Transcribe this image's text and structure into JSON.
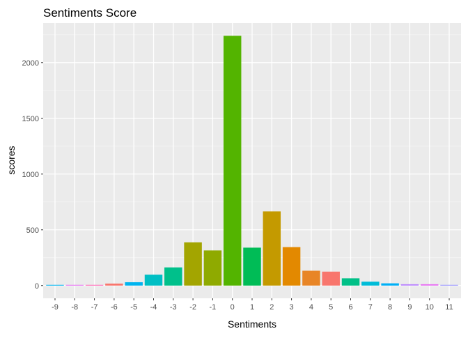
{
  "chart_data": {
    "type": "bar",
    "title": "Sentiments Score",
    "xlabel": "Sentiments",
    "ylabel": "scores",
    "categories": [
      "-9",
      "-8",
      "-7",
      "-6",
      "-5",
      "-4",
      "-3",
      "-2",
      "-1",
      "0",
      "1",
      "2",
      "3",
      "4",
      "5",
      "6",
      "7",
      "8",
      "9",
      "10",
      "11"
    ],
    "values": [
      3,
      5,
      5,
      18,
      30,
      98,
      163,
      388,
      315,
      2240,
      340,
      665,
      345,
      133,
      125,
      65,
      35,
      20,
      12,
      12,
      5
    ],
    "colors": [
      "#00B4EF",
      "#E76BF3",
      "#FF63B6",
      "#F8766D",
      "#00B4EF",
      "#00BFC4",
      "#00C08B",
      "#A3A500",
      "#8FAA00",
      "#53B400",
      "#00BC56",
      "#C49A00",
      "#E38900",
      "#E88526",
      "#F8766D",
      "#00C087",
      "#00BCD8",
      "#00B0F6",
      "#B983FF",
      "#E76BF3",
      "#9590FF"
    ],
    "yticks": [
      0,
      500,
      1000,
      1500,
      2000
    ],
    "ylim": [
      -114,
      2355
    ],
    "grid": true,
    "legend": "none"
  }
}
